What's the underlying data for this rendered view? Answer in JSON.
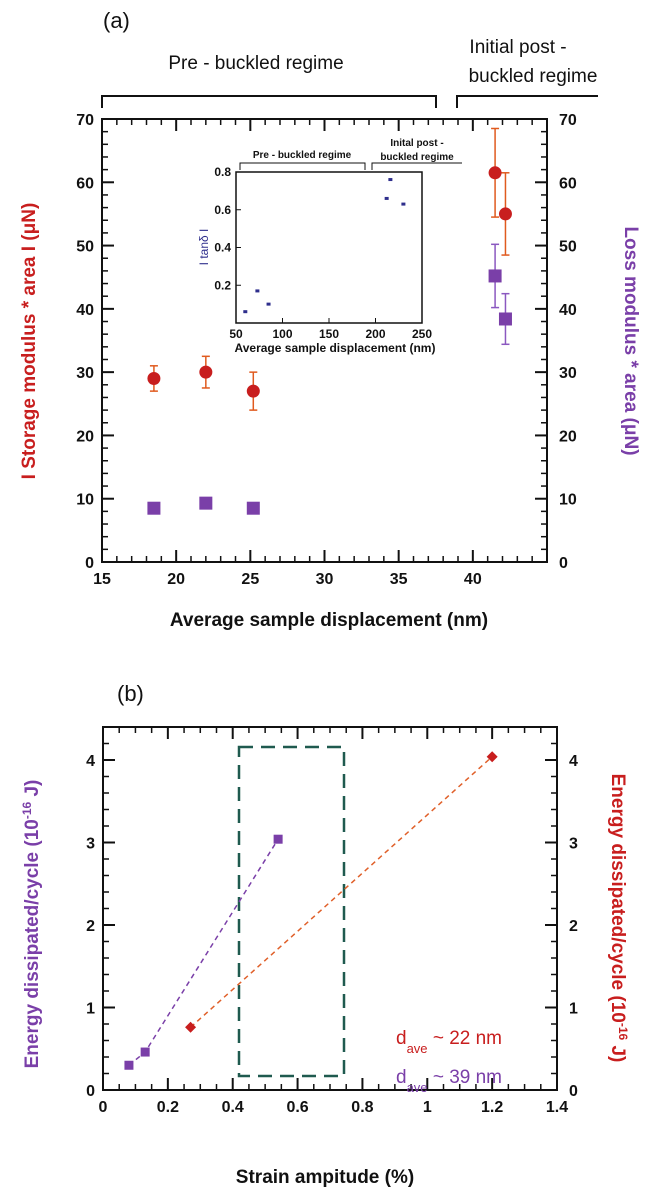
{
  "panel_a": {
    "label": "(a)",
    "regime_pre": "Pre - buckled regime",
    "regime_post_line1": "Initial post -",
    "regime_post_line2": "buckled regime"
  },
  "panel_b": {
    "label": "(b)",
    "legend_red_prefix": "d",
    "legend_red_sub": "ave",
    "legend_red_value": " ~ 22 nm",
    "legend_purple_prefix": "d",
    "legend_purple_sub": "ave",
    "legend_purple_value": " ~ 39 nm"
  },
  "colors": {
    "red": "#c81e1e",
    "purple": "#7a3fa8",
    "inset_blue": "#2e2e8c",
    "orange_line": "#e0602a",
    "box_green": "#1f5a4f",
    "axis": "#111111"
  },
  "chart_data": [
    {
      "type": "scatter",
      "panel": "(a)",
      "xlabel": "Average sample displacement (nm)",
      "ylabel_left": "I Storage modulus * area I (μN)",
      "ylabel_right": "Loss modulus * area (μN)",
      "xlim": [
        15,
        45
      ],
      "ylim": [
        0,
        70
      ],
      "xticks": [
        15,
        20,
        25,
        30,
        35,
        40
      ],
      "yticks": [
        0,
        10,
        20,
        30,
        40,
        50,
        60,
        70
      ],
      "grid": false,
      "series": [
        {
          "name": "Storage modulus * area",
          "marker": "circle",
          "color": "#c81e1e",
          "axis": "left",
          "x": [
            18.5,
            22.0,
            25.2,
            41.5,
            42.2
          ],
          "y": [
            29,
            30,
            27,
            61.5,
            55
          ],
          "err": [
            2,
            2.5,
            3,
            7,
            6.5
          ]
        },
        {
          "name": "Loss modulus * area",
          "marker": "square",
          "color": "#7a3fa8",
          "axis": "right",
          "x": [
            18.5,
            22.0,
            25.2,
            41.5,
            42.2
          ],
          "y": [
            8.5,
            9.3,
            8.5,
            45.2,
            38.4
          ],
          "err": [
            0,
            0,
            0,
            5,
            4
          ]
        }
      ]
    },
    {
      "type": "scatter",
      "panel": "(a) inset",
      "title_pre": "Pre - buckled regime",
      "title_post_line1": "Inital post -",
      "title_post_line2": "buckled regime",
      "xlabel": "Average sample displacement (nm)",
      "ylabel": "I tanδ I",
      "xlim": [
        50,
        250
      ],
      "ylim": [
        0,
        0.8
      ],
      "xticks": [
        50,
        100,
        150,
        200,
        250
      ],
      "yticks": [
        0.2,
        0.4,
        0.6,
        0.8
      ],
      "grid": false,
      "series": [
        {
          "color": "#2e2e8c",
          "x": [
            60,
            73,
            85,
            212,
            216,
            230
          ],
          "y": [
            0.06,
            0.17,
            0.1,
            0.66,
            0.76,
            0.63
          ]
        }
      ]
    },
    {
      "type": "line",
      "panel": "(b)",
      "xlabel": "Strain ampitude (%)",
      "ylabel_left": "Energy dissipated/cycle (10^-16 J)",
      "ylabel_right": "Energy dissipated/cycle (10^-16 J)",
      "xlim": [
        0,
        1.4
      ],
      "ylim": [
        0,
        4.4
      ],
      "xticks": [
        0,
        0.2,
        0.4,
        0.6,
        0.8,
        1,
        1.2,
        1.4
      ],
      "xtick_labels": [
        "0",
        "0.2",
        "0.4",
        "0.6",
        "0.8",
        "1",
        "1.2",
        "1.4"
      ],
      "yticks": [
        0,
        1,
        2,
        3,
        4
      ],
      "grid": false,
      "series": [
        {
          "name": "d ave ~ 22 nm",
          "marker": "diamond",
          "color": "#c81e1e",
          "line_color": "#e0602a",
          "x": [
            0.27,
            1.2
          ],
          "y": [
            0.76,
            4.04
          ]
        },
        {
          "name": "d ave ~ 39 nm",
          "marker": "square",
          "color": "#7a3fa8",
          "line_color": "#7a3fa8",
          "x": [
            0.08,
            0.13,
            0.54
          ],
          "y": [
            0.3,
            0.46,
            3.04
          ]
        }
      ],
      "annotation": "dashed rectangle around strain 0.42 - 0.74"
    }
  ]
}
